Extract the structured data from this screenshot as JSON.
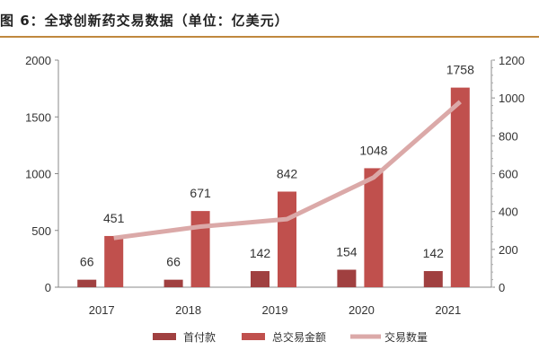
{
  "title": "图 6：全球创新药交易数据（单位：亿美元）",
  "chart_data": {
    "type": "bar",
    "title": "图 6：全球创新药交易数据（单位：亿美元）",
    "categories": [
      "2017",
      "2018",
      "2019",
      "2020",
      "2021"
    ],
    "series": [
      {
        "name": "首付款",
        "type": "bar",
        "axis": "left",
        "color": "#a04040",
        "values": [
          66,
          66,
          142,
          154,
          142
        ]
      },
      {
        "name": "总交易金额",
        "type": "bar",
        "axis": "left",
        "color": "#c0504d",
        "values": [
          451,
          671,
          842,
          1048,
          1758
        ]
      },
      {
        "name": "交易数量",
        "type": "line",
        "axis": "right",
        "color": "#dba9a8",
        "values": [
          260,
          320,
          360,
          580,
          980
        ]
      }
    ],
    "left_axis": {
      "ylim": [
        0,
        2000
      ],
      "ticks": [
        "0",
        "500",
        "1000",
        "1500",
        "2000"
      ]
    },
    "right_axis": {
      "ylim": [
        0,
        1200
      ],
      "ticks": [
        "0",
        "200",
        "400",
        "600",
        "800",
        "1000",
        "1200"
      ]
    },
    "grid": false,
    "legend": "bottom"
  }
}
